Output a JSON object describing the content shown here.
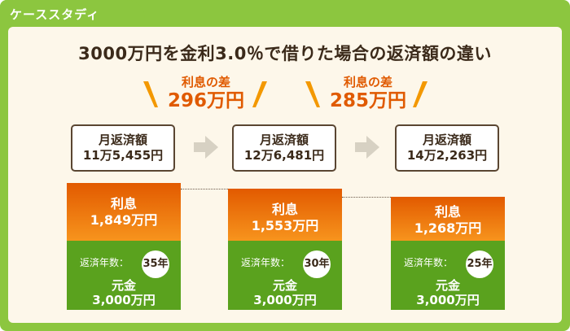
{
  "tab_label": "ケーススタディ",
  "title": "3000万円を金利3.0％で借りた場合の返済額の違い",
  "differences": [
    {
      "label": "利息の差",
      "value": "296万円"
    },
    {
      "label": "利息の差",
      "value": "285万円"
    }
  ],
  "cases": [
    {
      "monthly_label": "月返済額",
      "monthly_value": "11万5,455円",
      "interest_label": "利息",
      "interest_value": "1,849万円",
      "years_label": "返済年数：",
      "years_value": "35年",
      "principal_label": "元金",
      "principal_value": "3,000万円"
    },
    {
      "monthly_label": "月返済額",
      "monthly_value": "12万6,481円",
      "interest_label": "利息",
      "interest_value": "1,553万円",
      "years_label": "返済年数：",
      "years_value": "30年",
      "principal_label": "元金",
      "principal_value": "3,000万円"
    },
    {
      "monthly_label": "月返済額",
      "monthly_value": "14万2,263円",
      "interest_label": "利息",
      "interest_value": "1,268万円",
      "years_label": "返済年数：",
      "years_value": "25年",
      "principal_label": "元金",
      "principal_value": "3,000万円"
    }
  ],
  "colors": {
    "frame": "#8cc63f",
    "panel": "#fdf7ea",
    "interest_top": "#e25a00",
    "interest_bottom": "#f7941d",
    "principal": "#5aa21e",
    "text_dark": "#3b2a1a",
    "accent_orange": "#e05a00",
    "arrow": "#d7d1c3"
  },
  "icons": {
    "arrow": "right-arrow-icon",
    "slash": "emphasis-slash-icon"
  }
}
